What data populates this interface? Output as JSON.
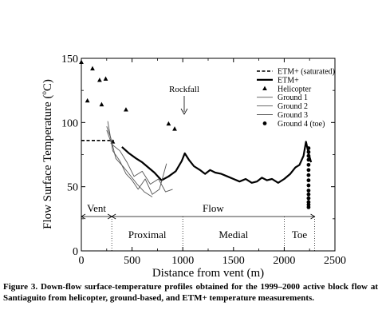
{
  "chart_data": {
    "type": "line",
    "xlabel": "Distance from vent (m)",
    "ylabel": "Flow Surface Temperature (°C)",
    "ylabel_main": "Flow Surface Temperature (",
    "ylabel_degree": "o",
    "ylabel_unit": "C)",
    "xlim": [
      0,
      2500
    ],
    "ylim": [
      0,
      150
    ],
    "x_ticks": [
      0,
      500,
      1000,
      1500,
      2000,
      2500
    ],
    "y_ticks": [
      0,
      50,
      100,
      150
    ],
    "x_tick_labels": [
      "0",
      "500",
      "1000",
      "1500",
      "2000",
      "2500"
    ],
    "y_tick_labels": [
      "0",
      "50",
      "100",
      "150"
    ],
    "grid": false,
    "legend_position": "top-right",
    "series": [
      {
        "name": "ETM+ (saturated)",
        "style": "dashed",
        "x": [
          0,
          320
        ],
        "y": [
          86,
          86
        ]
      },
      {
        "name": "ETM+",
        "style": "thick",
        "x": [
          400,
          470,
          540,
          600,
          660,
          720,
          790,
          860,
          930,
          990,
          1020,
          1060,
          1110,
          1170,
          1220,
          1270,
          1320,
          1380,
          1440,
          1500,
          1560,
          1620,
          1680,
          1730,
          1780,
          1830,
          1880,
          1940,
          2000,
          2060,
          2110,
          2150,
          2190,
          2215,
          2240,
          2265
        ],
        "y": [
          81,
          76,
          72,
          69,
          65,
          61,
          55,
          58,
          62,
          70,
          76,
          71,
          66,
          63,
          60,
          63,
          61,
          60,
          58,
          56,
          54,
          56,
          53,
          54,
          57,
          55,
          56,
          53,
          56,
          60,
          65,
          67,
          74,
          85,
          76,
          69
        ]
      },
      {
        "name": "Helicopter",
        "style": "triangle",
        "x": [
          0,
          60,
          110,
          180,
          200,
          240,
          310,
          440,
          860,
          920
        ],
        "y": [
          147,
          117,
          142,
          133,
          114,
          134,
          85,
          110,
          99,
          95
        ]
      },
      {
        "name": "Ground 1",
        "style": "thin",
        "x": [
          250,
          290,
          340,
          420,
          470,
          550,
          620,
          700
        ],
        "y": [
          97,
          88,
          72,
          65,
          60,
          52,
          46,
          42
        ]
      },
      {
        "name": "Ground 2",
        "style": "thin",
        "x": [
          250,
          300,
          380,
          450,
          520,
          600,
          680,
          760,
          830,
          900
        ],
        "y": [
          94,
          83,
          78,
          69,
          58,
          62,
          52,
          56,
          46,
          48
        ]
      },
      {
        "name": "Ground 3",
        "style": "thin",
        "x": [
          260,
          310,
          380,
          440,
          500,
          560,
          630,
          700,
          770,
          840
        ],
        "y": [
          101,
          78,
          70,
          60,
          55,
          48,
          56,
          44,
          48,
          68
        ]
      },
      {
        "name": "Ground 4 (toe)",
        "style": "dot",
        "x": [
          2240,
          2240,
          2240,
          2240,
          2240,
          2240,
          2240,
          2240,
          2240,
          2240,
          2240,
          2240,
          2240,
          2240,
          2240
        ],
        "y": [
          80,
          77,
          74,
          71,
          67,
          63,
          59,
          55,
          51,
          47,
          44,
          41,
          38,
          36,
          34
        ]
      }
    ],
    "legend_entries": [
      "ETM+ (saturated)",
      "ETM+",
      "Helicopter",
      "Ground 1",
      "Ground 2",
      "Ground 3",
      "Ground 4 (toe)"
    ],
    "annotations": {
      "rockfall": {
        "label": "Rockfall",
        "x": 1020
      },
      "zones": [
        {
          "label": "Vent",
          "x_start": 0,
          "x_end": 300
        },
        {
          "label": "Flow",
          "x_start": 300,
          "x_end": 2300
        }
      ],
      "subzones": [
        {
          "label": "Proximal",
          "x_start": 300,
          "x_end": 1000
        },
        {
          "label": "Medial",
          "x_start": 1000,
          "x_end": 2000
        },
        {
          "label": "Toe",
          "x_start": 2000,
          "x_end": 2300
        }
      ],
      "dotted_boundaries": [
        300,
        1000,
        2000,
        2300
      ]
    }
  },
  "caption": "Figure 3. Down-flow surface-temperature profiles obtained for the 1999–2000 active block flow at Santiaguito from helicopter, ground-based, and ETM+ temperature measurements."
}
